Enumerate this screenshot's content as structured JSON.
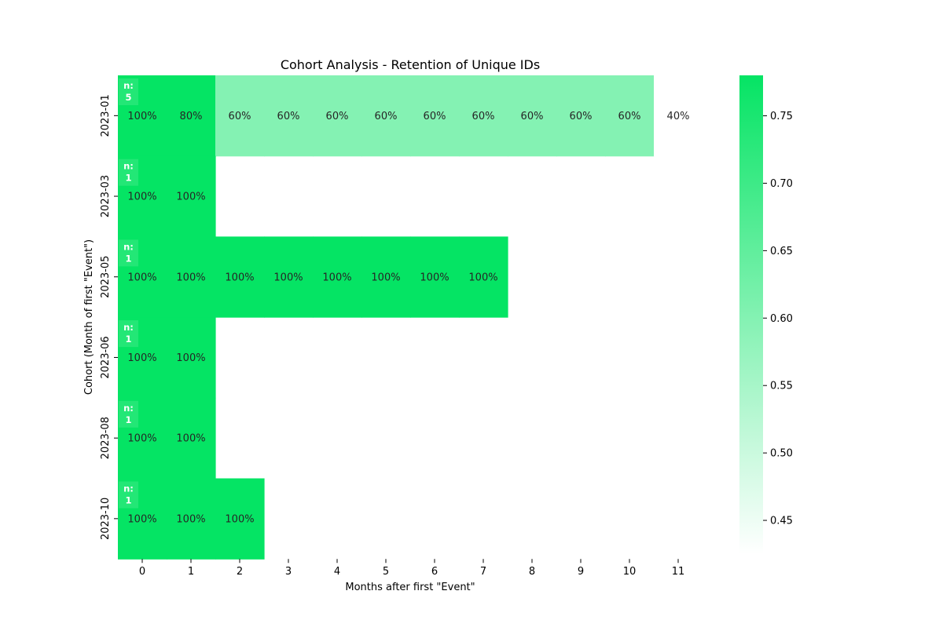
{
  "chart_data": {
    "type": "heatmap",
    "title": "Cohort Analysis - Retention of Unique IDs",
    "xlabel": "Months after first \"Event\"",
    "ylabel": "Cohort (Month of first \"Event\")",
    "x_ticks": [
      "0",
      "1",
      "2",
      "3",
      "4",
      "5",
      "6",
      "7",
      "8",
      "9",
      "10",
      "11"
    ],
    "cohorts": [
      {
        "label": "2023-01",
        "n_badge": "n:\n5",
        "values": [
          1.0,
          0.8,
          0.6,
          0.6,
          0.6,
          0.6,
          0.6,
          0.6,
          0.6,
          0.6,
          0.6,
          0.4
        ],
        "cell_labels": [
          "100%",
          "80%",
          "60%",
          "60%",
          "60%",
          "60%",
          "60%",
          "60%",
          "60%",
          "60%",
          "60%",
          "40%"
        ]
      },
      {
        "label": "2023-03",
        "n_badge": "n:\n1",
        "values": [
          1.0,
          1.0
        ],
        "cell_labels": [
          "100%",
          "100%"
        ]
      },
      {
        "label": "2023-05",
        "n_badge": "n:\n1",
        "values": [
          1.0,
          1.0,
          1.0,
          1.0,
          1.0,
          1.0,
          1.0,
          1.0
        ],
        "cell_labels": [
          "100%",
          "100%",
          "100%",
          "100%",
          "100%",
          "100%",
          "100%",
          "100%"
        ]
      },
      {
        "label": "2023-06",
        "n_badge": "n:\n1",
        "values": [
          1.0,
          1.0
        ],
        "cell_labels": [
          "100%",
          "100%"
        ]
      },
      {
        "label": "2023-08",
        "n_badge": "n:\n1",
        "values": [
          1.0,
          1.0
        ],
        "cell_labels": [
          "100%",
          "100%"
        ]
      },
      {
        "label": "2023-10",
        "n_badge": "n:\n1",
        "values": [
          1.0,
          1.0,
          1.0
        ],
        "cell_labels": [
          "100%",
          "100%",
          "100%"
        ]
      }
    ],
    "colorbar": {
      "vmin": 0.425,
      "vmax": 0.78,
      "ticks": [
        0.45,
        0.5,
        0.55,
        0.6,
        0.65,
        0.7,
        0.75
      ],
      "tick_labels": [
        "0.45",
        "0.50",
        "0.55",
        "0.60",
        "0.65",
        "0.70",
        "0.75"
      ],
      "color_low": "#ffffff",
      "color_high": "#05e464"
    },
    "colors": {
      "cell_text": "#262626",
      "badge_text": "#ffffff",
      "axis": "#000000"
    }
  }
}
